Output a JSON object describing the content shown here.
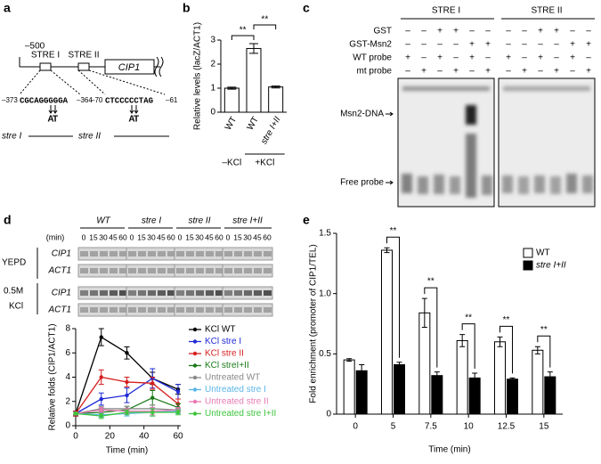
{
  "panels": {
    "labels": [
      "a",
      "b",
      "c",
      "d",
      "e"
    ]
  },
  "diagram": {
    "start": "–500",
    "boxes": [
      "STRE I",
      "STRE II"
    ],
    "gene": "CIP1",
    "sequences": [
      {
        "from": "–373",
        "seq": "CGCAGGGGGA",
        "to": "–364",
        "mutations": [
          "A",
          "T"
        ],
        "allele": "stre I"
      },
      {
        "from": "–70",
        "seq": "CTCCCCCTAG",
        "to": "–61",
        "mutations": [
          "A",
          "T"
        ],
        "allele": "stre II"
      }
    ]
  },
  "gel_c": {
    "headers": [
      "STRE I",
      "STRE II"
    ],
    "rows": [
      {
        "label": "GST",
        "signs": [
          "–",
          "–",
          "+",
          "+",
          "–",
          "–",
          "–",
          "–",
          "+",
          "+",
          "–",
          "–"
        ]
      },
      {
        "label": "GST-Msn2",
        "signs": [
          "–",
          "–",
          "–",
          "–",
          "+",
          "+",
          "–",
          "–",
          "–",
          "–",
          "+",
          "+"
        ]
      },
      {
        "label": "WT probe",
        "signs": [
          "+",
          "–",
          "+",
          "–",
          "+",
          "–",
          "+",
          "–",
          "+",
          "–",
          "+",
          "–"
        ]
      },
      {
        "label": "mt probe",
        "signs": [
          "–",
          "+",
          "–",
          "+",
          "–",
          "+",
          "–",
          "+",
          "–",
          "+",
          "–",
          "+"
        ]
      }
    ],
    "bands": [
      "Msn2-DNA",
      "Free probe"
    ]
  },
  "gel_d": {
    "groups": [
      "WT",
      "stre I",
      "stre II",
      "stre I+II"
    ],
    "unit": "(min)",
    "times": [
      "0",
      "15",
      "30",
      "45",
      "60"
    ],
    "conditions": [
      "YEPD",
      "0.5M",
      "KCl"
    ],
    "genes": [
      "CIP1",
      "ACT1"
    ]
  },
  "chart_data": [
    {
      "type": "bar",
      "categories": [
        "WT",
        "WT",
        "stre I+II"
      ],
      "values": [
        1.0,
        2.65,
        1.05
      ],
      "errors": [
        0.04,
        0.2,
        0.04
      ],
      "color": "#ffffff",
      "ylim": [
        0,
        3
      ],
      "yticks": [
        0,
        1,
        2,
        3
      ],
      "y_label": "Relative levels (lacZ/ACT1)",
      "groups": [
        "–KCl",
        "+KCl"
      ],
      "annotations": [
        "**",
        "**"
      ]
    },
    {
      "type": "line",
      "x": [
        0,
        15,
        30,
        45,
        60
      ],
      "xlim": [
        0,
        60
      ],
      "xticks": [
        0,
        20,
        40,
        60
      ],
      "ylim": [
        0,
        8
      ],
      "yticks": [
        0,
        2,
        4,
        6,
        8
      ],
      "x_label": "Time (min)",
      "y_label": "Relative folds (CIP1/ACT1)",
      "series": [
        {
          "name": "KCl WT",
          "color": "#000000",
          "values": [
            1,
            7.3,
            6.0,
            3.9,
            3.0
          ],
          "errors": [
            0.2,
            0.7,
            0.5,
            0.5,
            0.4
          ]
        },
        {
          "name": "KCl stre I",
          "color": "#1f2ad6",
          "values": [
            1,
            2.2,
            2.5,
            3.9,
            2.8
          ],
          "errors": [
            0.2,
            0.5,
            0.6,
            0.8,
            0.6
          ]
        },
        {
          "name": "KCl stre II",
          "color": "#d61f1f",
          "values": [
            1,
            4.0,
            3.6,
            3.5,
            1.8
          ],
          "errors": [
            0.2,
            0.6,
            0.4,
            0.5,
            0.4
          ]
        },
        {
          "name": "KCl streI+II",
          "color": "#1a7a1a",
          "values": [
            1,
            1.1,
            1.3,
            2.3,
            1.5
          ],
          "errors": [
            0.1,
            0.3,
            0.3,
            0.6,
            0.3
          ]
        },
        {
          "name": "Untreated WT",
          "color": "#888888",
          "values": [
            1,
            1.4,
            1.4,
            1.4,
            1.3
          ],
          "errors": [
            0.1,
            0.2,
            0.2,
            0.3,
            0.2
          ]
        },
        {
          "name": "Untreated stre I",
          "color": "#5ab4e8",
          "values": [
            1,
            0.9,
            1.0,
            1.1,
            1.2
          ],
          "errors": [
            0.1,
            0.2,
            0.2,
            0.3,
            0.2
          ]
        },
        {
          "name": "Untreated stre II",
          "color": "#e87ab4",
          "values": [
            1,
            1.3,
            1.2,
            1.2,
            1.3
          ],
          "errors": [
            0.1,
            0.2,
            0.2,
            0.3,
            0.2
          ]
        },
        {
          "name": "Untreated stre I+II",
          "color": "#3cc43c",
          "values": [
            1,
            0.8,
            1.1,
            1.1,
            1.1
          ],
          "errors": [
            0.1,
            0.2,
            0.2,
            0.3,
            0.2
          ]
        }
      ]
    },
    {
      "type": "bar",
      "categories": [
        "0",
        "5",
        "7.5",
        "10",
        "12.5",
        "15"
      ],
      "ylim": [
        0,
        1.5
      ],
      "yticks": [
        0,
        0.5,
        {
          "value": 1,
          "label": "1.0"
        },
        1.5
      ],
      "x_label": "Time (min)",
      "y_label": "Fold enrichment (promoter of CIP1/TEL)",
      "legend": "upper right",
      "series": [
        {
          "name": "WT",
          "color": "#ffffff",
          "values": [
            0.45,
            1.36,
            0.84,
            0.61,
            0.6,
            0.53
          ],
          "errors": [
            0.01,
            0.02,
            0.12,
            0.05,
            0.04,
            0.03
          ]
        },
        {
          "name": "stre I+II",
          "color": "#000000",
          "values": [
            0.36,
            0.41,
            0.32,
            0.3,
            0.29,
            0.31
          ],
          "errors": [
            0.05,
            0.02,
            0.03,
            0.04,
            0.01,
            0.04
          ]
        }
      ],
      "annotations": [
        "**",
        "**",
        "**",
        "**",
        "**"
      ]
    }
  ]
}
